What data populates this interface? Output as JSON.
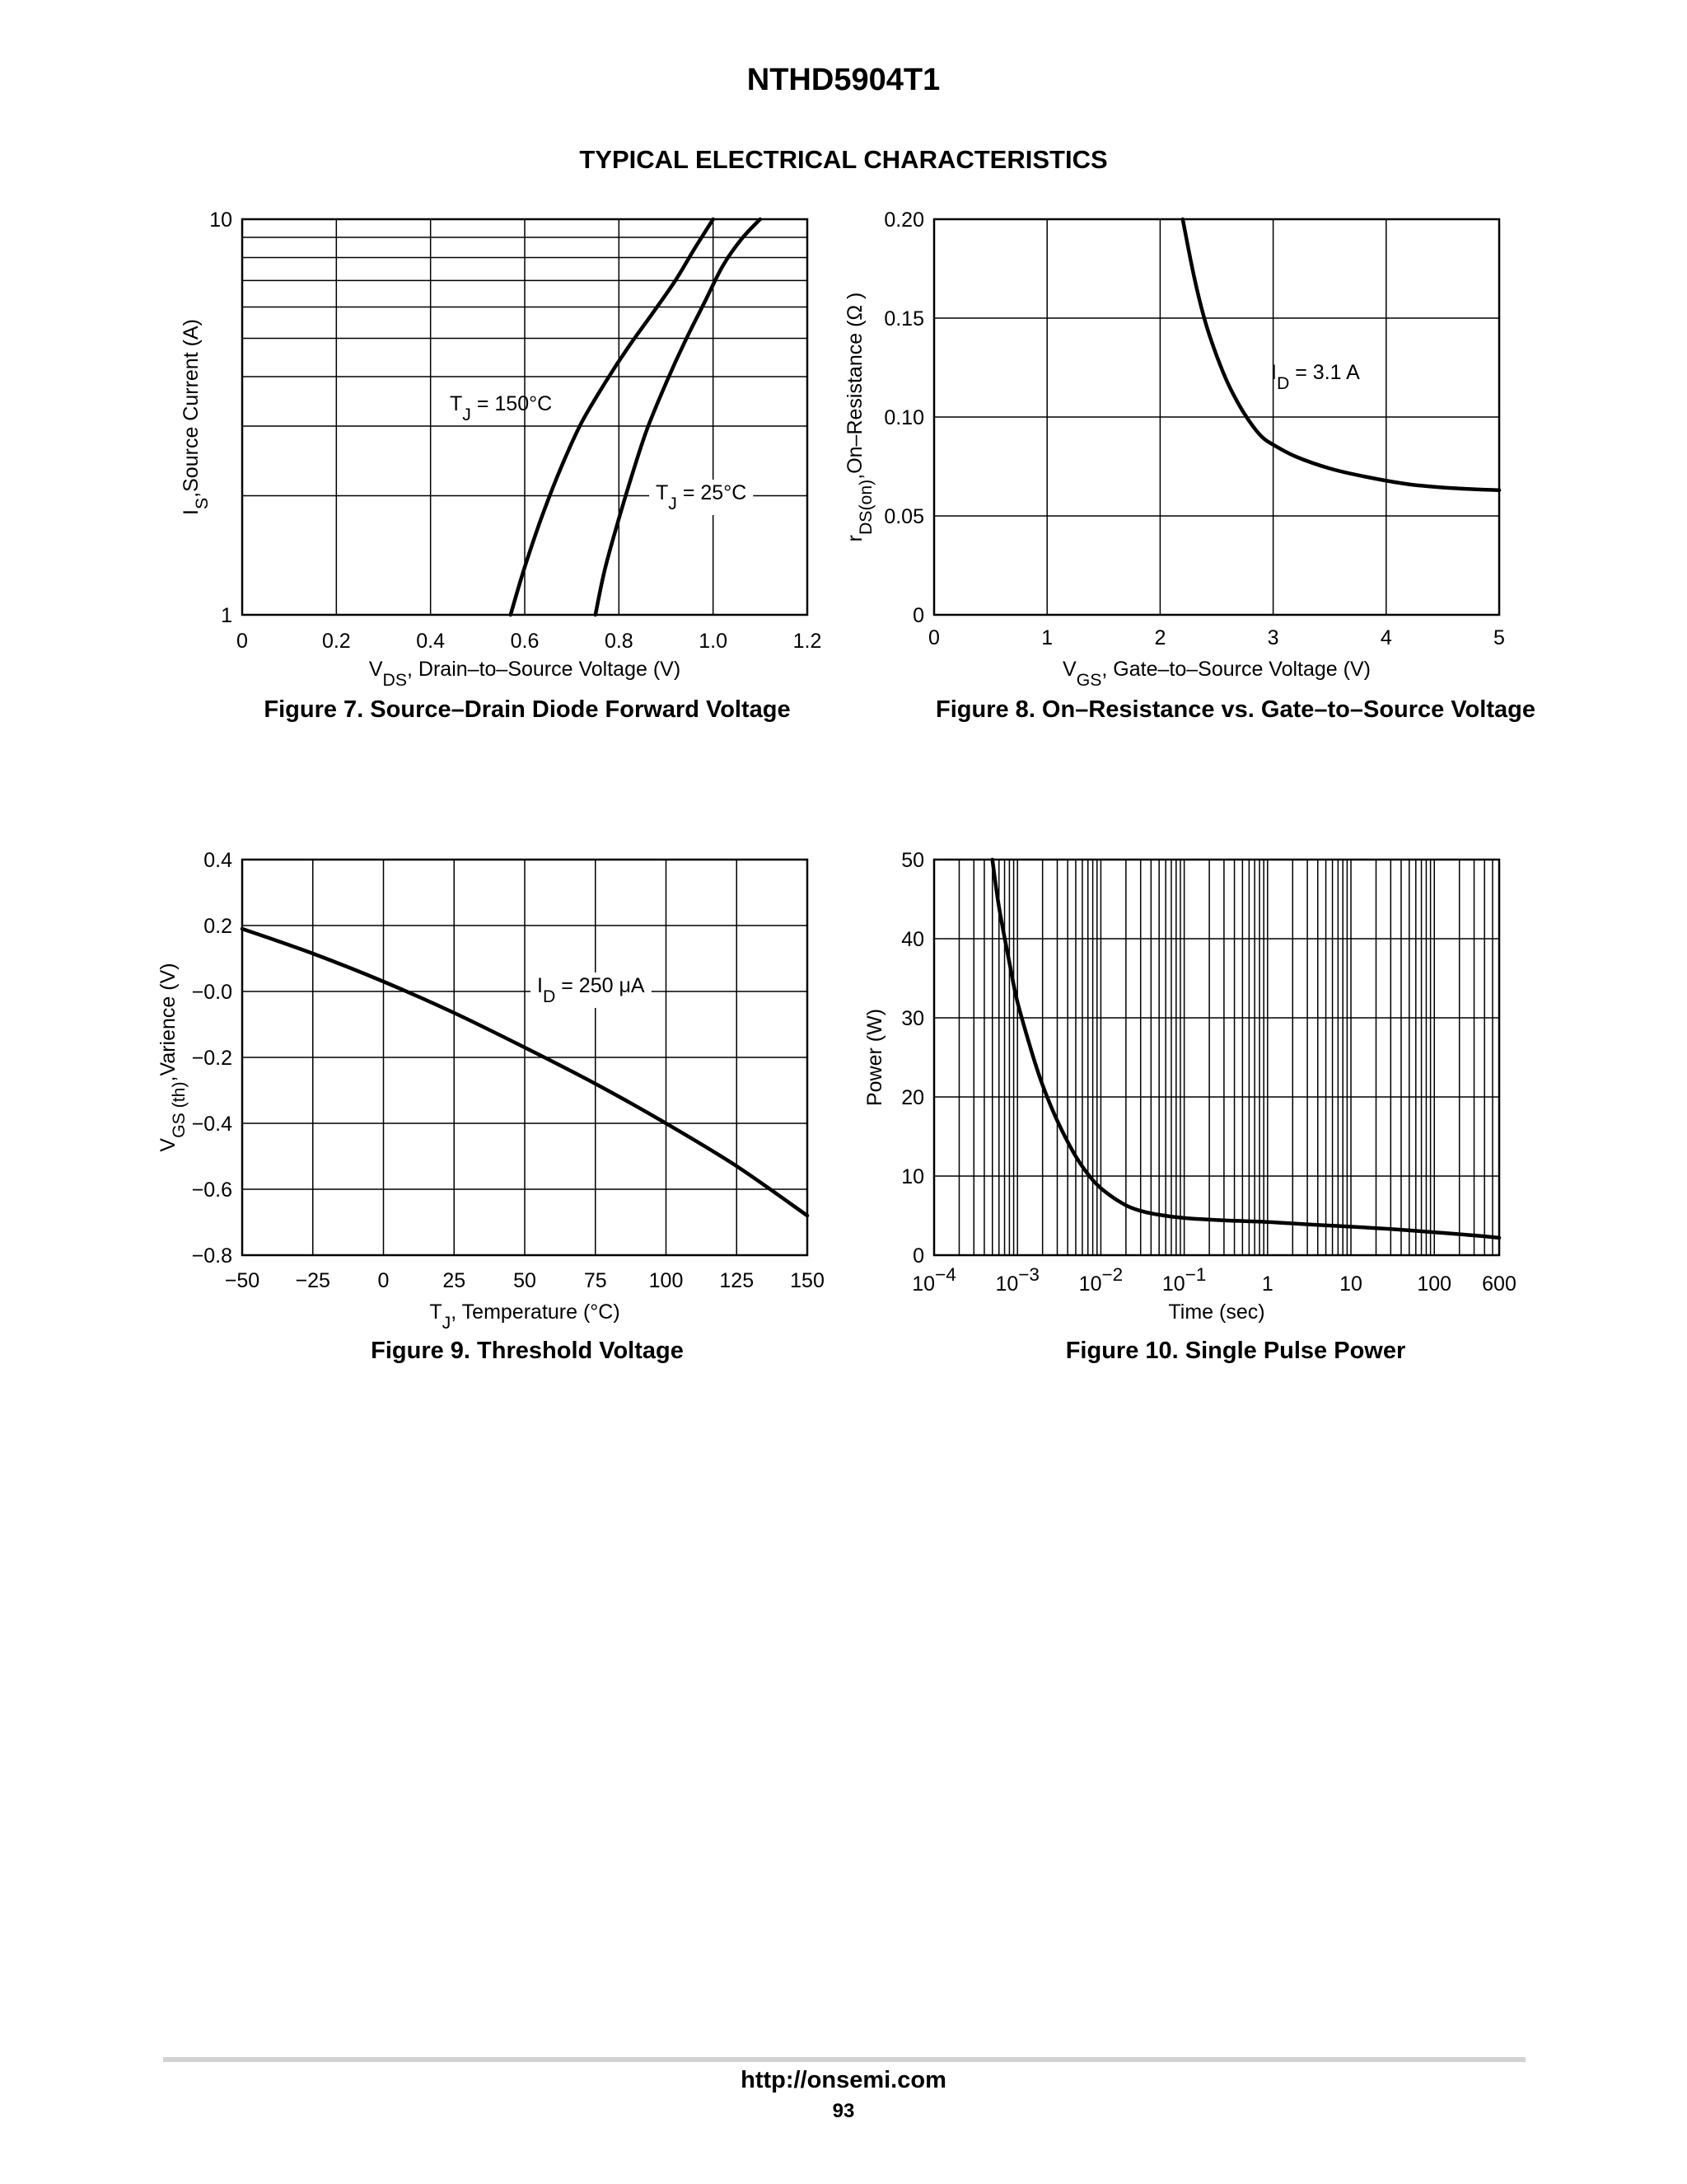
{
  "document": {
    "title": "NTHD5904T1",
    "section_title": "TYPICAL ELECTRICAL CHARACTERISTICS",
    "footer_url": "http://onsemi.com",
    "page_number": "93"
  },
  "chart_data": [
    {
      "id": "fig7",
      "type": "line",
      "caption": "Figure 7. Source–Drain Diode Forward Voltage",
      "xlabel": {
        "main": "V",
        "sub": "DS",
        "rest": ", Drain–to–Source Voltage (V)"
      },
      "ylabel": {
        "main": "I",
        "sub": "S",
        "rest": ",Source Current (A)"
      },
      "xscale": "linear",
      "yscale": "log",
      "xlim": [
        0,
        1.2
      ],
      "ylim": [
        1,
        10
      ],
      "xticks": [
        0,
        0.2,
        0.4,
        0.6,
        0.8,
        1.0,
        1.2
      ],
      "xtick_labels": [
        "0",
        "0.2",
        "0.4",
        "0.6",
        "0.8",
        "1.0",
        "1.2"
      ],
      "xgrid": [
        0.2,
        0.4,
        0.6,
        0.8,
        1.0
      ],
      "yticks": [
        1,
        10
      ],
      "ytick_labels": [
        "1",
        "10"
      ],
      "ygrid": [
        2,
        3,
        4,
        5,
        6,
        7,
        8,
        9
      ],
      "series": [
        {
          "name": {
            "main": "T",
            "sub": "J",
            "rest": " = 150°C"
          },
          "x": [
            0.57,
            0.6,
            0.64,
            0.68,
            0.72,
            0.77,
            0.82,
            0.87,
            0.92,
            0.96,
            1.0
          ],
          "y": [
            1.0,
            1.32,
            1.82,
            2.4,
            3.05,
            3.85,
            4.75,
            5.75,
            7.0,
            8.4,
            10.0
          ]
        },
        {
          "name": {
            "main": "T",
            "sub": "J",
            "rest": " = 25°C"
          },
          "x": [
            0.75,
            0.77,
            0.8,
            0.83,
            0.86,
            0.9,
            0.94,
            0.98,
            1.02,
            1.06,
            1.1
          ],
          "y": [
            1.0,
            1.3,
            1.75,
            2.3,
            2.95,
            3.85,
            4.9,
            6.1,
            7.6,
            8.9,
            10.0
          ]
        }
      ]
    },
    {
      "id": "fig8",
      "type": "line",
      "caption": "Figure 8. On–Resistance vs. Gate–to–Source Voltage",
      "xlabel": {
        "main": "V",
        "sub": "GS",
        "rest": ", Gate–to–Source Voltage (V)"
      },
      "ylabel": {
        "main": "r",
        "sub": "DS(on)",
        "rest": ",On–Resistance (Ω )"
      },
      "xscale": "linear",
      "yscale": "linear",
      "xlim": [
        0,
        5
      ],
      "ylim": [
        0,
        0.2
      ],
      "xticks": [
        0,
        1,
        2,
        3,
        4,
        5
      ],
      "xtick_labels": [
        "0",
        "1",
        "2",
        "3",
        "4",
        "5"
      ],
      "xgrid": [
        1,
        2,
        3,
        4
      ],
      "yticks": [
        0,
        0.05,
        0.1,
        0.15,
        0.2
      ],
      "ytick_labels": [
        "0",
        "0.05",
        "0.10",
        "0.15",
        "0.20"
      ],
      "ygrid": [
        0.05,
        0.1,
        0.15
      ],
      "series": [
        {
          "name": {
            "main": "I",
            "sub": "D",
            "rest": " = 3.1 A"
          },
          "x": [
            2.2,
            2.3,
            2.4,
            2.5,
            2.6,
            2.7,
            2.8,
            2.9,
            3.0,
            3.2,
            3.5,
            3.8,
            4.2,
            4.6,
            5.0
          ],
          "y": [
            0.2,
            0.171,
            0.148,
            0.131,
            0.117,
            0.106,
            0.097,
            0.09,
            0.086,
            0.08,
            0.074,
            0.07,
            0.066,
            0.064,
            0.063
          ]
        }
      ]
    },
    {
      "id": "fig9",
      "type": "line",
      "caption": "Figure 9. Threshold Voltage",
      "xlabel": {
        "main": "T",
        "sub": "J",
        "rest": ", Temperature (°C)"
      },
      "ylabel": {
        "main": "V",
        "sub": "GS (th)",
        "rest": ",Varience (V)"
      },
      "xscale": "linear",
      "yscale": "linear",
      "xlim": [
        -50,
        150
      ],
      "ylim": [
        -0.8,
        0.4
      ],
      "xticks": [
        -50,
        -25,
        0,
        25,
        50,
        75,
        100,
        125,
        150
      ],
      "xtick_labels": [
        "−50",
        "−25",
        "0",
        "25",
        "50",
        "75",
        "100",
        "125",
        "150"
      ],
      "xgrid": [
        -25,
        0,
        25,
        50,
        75,
        100,
        125
      ],
      "yticks": [
        -0.8,
        -0.6,
        -0.4,
        -0.2,
        0.0,
        0.2,
        0.4
      ],
      "ytick_labels": [
        "−0.8",
        "−0.6",
        "−0.4",
        "−0.2",
        "−0.0",
        "0.2",
        "0.4"
      ],
      "ygrid": [
        -0.6,
        -0.4,
        -0.2,
        0.0,
        0.2
      ],
      "series": [
        {
          "name": {
            "main": "I",
            "sub": "D",
            "rest": " = 250 μA"
          },
          "x": [
            -50,
            -25,
            0,
            25,
            50,
            75,
            100,
            125,
            150
          ],
          "y": [
            0.19,
            0.115,
            0.03,
            -0.065,
            -0.17,
            -0.28,
            -0.4,
            -0.53,
            -0.68
          ]
        }
      ]
    },
    {
      "id": "fig10",
      "type": "line",
      "caption": "Figure 10. Single Pulse Power",
      "xlabel": {
        "main": "Time (sec)",
        "sub": "",
        "rest": ""
      },
      "ylabel": {
        "main": "Power (W)",
        "sub": "",
        "rest": ""
      },
      "xscale": "log",
      "yscale": "linear",
      "xlim": [
        0.0001,
        600
      ],
      "ylim": [
        0,
        50
      ],
      "xticks": [
        0.0001,
        0.001,
        0.01,
        0.1,
        1,
        10,
        100,
        600
      ],
      "xtick_labels": [
        {
          "base": "10",
          "exp": "−4"
        },
        {
          "base": "10",
          "exp": "−3"
        },
        {
          "base": "10",
          "exp": "−2"
        },
        {
          "base": "10",
          "exp": "−1"
        },
        {
          "base": "1",
          "exp": ""
        },
        {
          "base": "10",
          "exp": ""
        },
        {
          "base": "100",
          "exp": ""
        },
        {
          "base": "600",
          "exp": ""
        }
      ],
      "yticks": [
        0,
        10,
        20,
        30,
        40,
        50
      ],
      "ytick_labels": [
        "0",
        "10",
        "20",
        "30",
        "40",
        "50"
      ],
      "ygrid": [
        10,
        20,
        30,
        40
      ],
      "series": [
        {
          "name": "",
          "x": [
            0.0005,
            0.0006,
            0.0008,
            0.001,
            0.0015,
            0.002,
            0.003,
            0.005,
            0.008,
            0.012,
            0.02,
            0.03,
            0.05,
            0.1,
            0.3,
            1,
            3,
            10,
            30,
            100,
            300,
            600
          ],
          "y": [
            50,
            44,
            37,
            32,
            25.5,
            21.5,
            17,
            12.5,
            9.5,
            7.8,
            6.3,
            5.6,
            5.1,
            4.7,
            4.4,
            4.2,
            3.9,
            3.6,
            3.3,
            2.9,
            2.5,
            2.2
          ]
        }
      ]
    }
  ]
}
